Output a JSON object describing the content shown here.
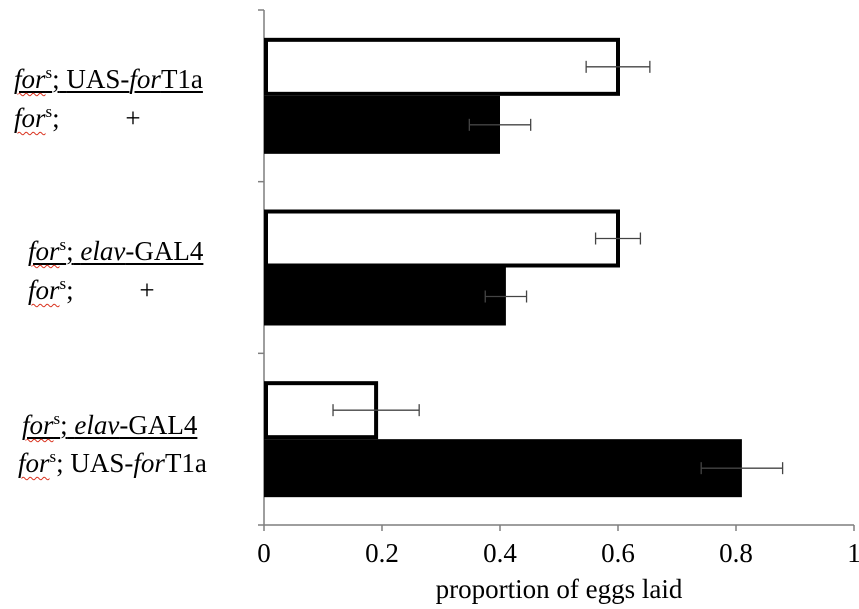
{
  "chart_data": {
    "type": "bar",
    "orientation": "horizontal",
    "xlabel": "proportion of eggs laid",
    "xlim": [
      0,
      1
    ],
    "xticks": [
      "0",
      "0.2",
      "0.4",
      "0.6",
      "0.8",
      "1"
    ],
    "grid": false,
    "legend": "none",
    "groups": [
      {
        "label_top": {
          "pre": "for",
          "sup": "s",
          "semi": ";",
          "gene": "UAS-",
          "gene_it": "for",
          "gene_post": "T1a"
        },
        "label_bottom": {
          "pre": "for",
          "sup": "s",
          "semi": ";",
          "gene": "+"
        },
        "values": [
          0.6,
          0.4
        ],
        "errors": [
          0.054,
          0.052
        ]
      },
      {
        "label_top": {
          "pre": "for",
          "sup": "s",
          "semi": ";",
          "gene_it": "elav",
          "gene_post": "-GAL4"
        },
        "label_bottom": {
          "pre": "for",
          "sup": "s",
          "semi": ";",
          "gene": "+"
        },
        "values": [
          0.6,
          0.41
        ],
        "errors": [
          0.038,
          0.035
        ]
      },
      {
        "label_top": {
          "pre": "for",
          "sup": "s",
          "semi": ";",
          "gene_it": "elav",
          "gene_post": "-GAL4"
        },
        "label_bottom": {
          "pre": "for",
          "sup": "s",
          "semi": ";",
          "gene": "UAS-",
          "gene_it": "for",
          "gene_post": "T1a"
        },
        "values": [
          0.19,
          0.81
        ],
        "errors": [
          0.073,
          0.069
        ]
      }
    ],
    "colors": {
      "top_bar": "#ffffff",
      "bottom_bar": "#000000",
      "outline": "#000000"
    }
  }
}
